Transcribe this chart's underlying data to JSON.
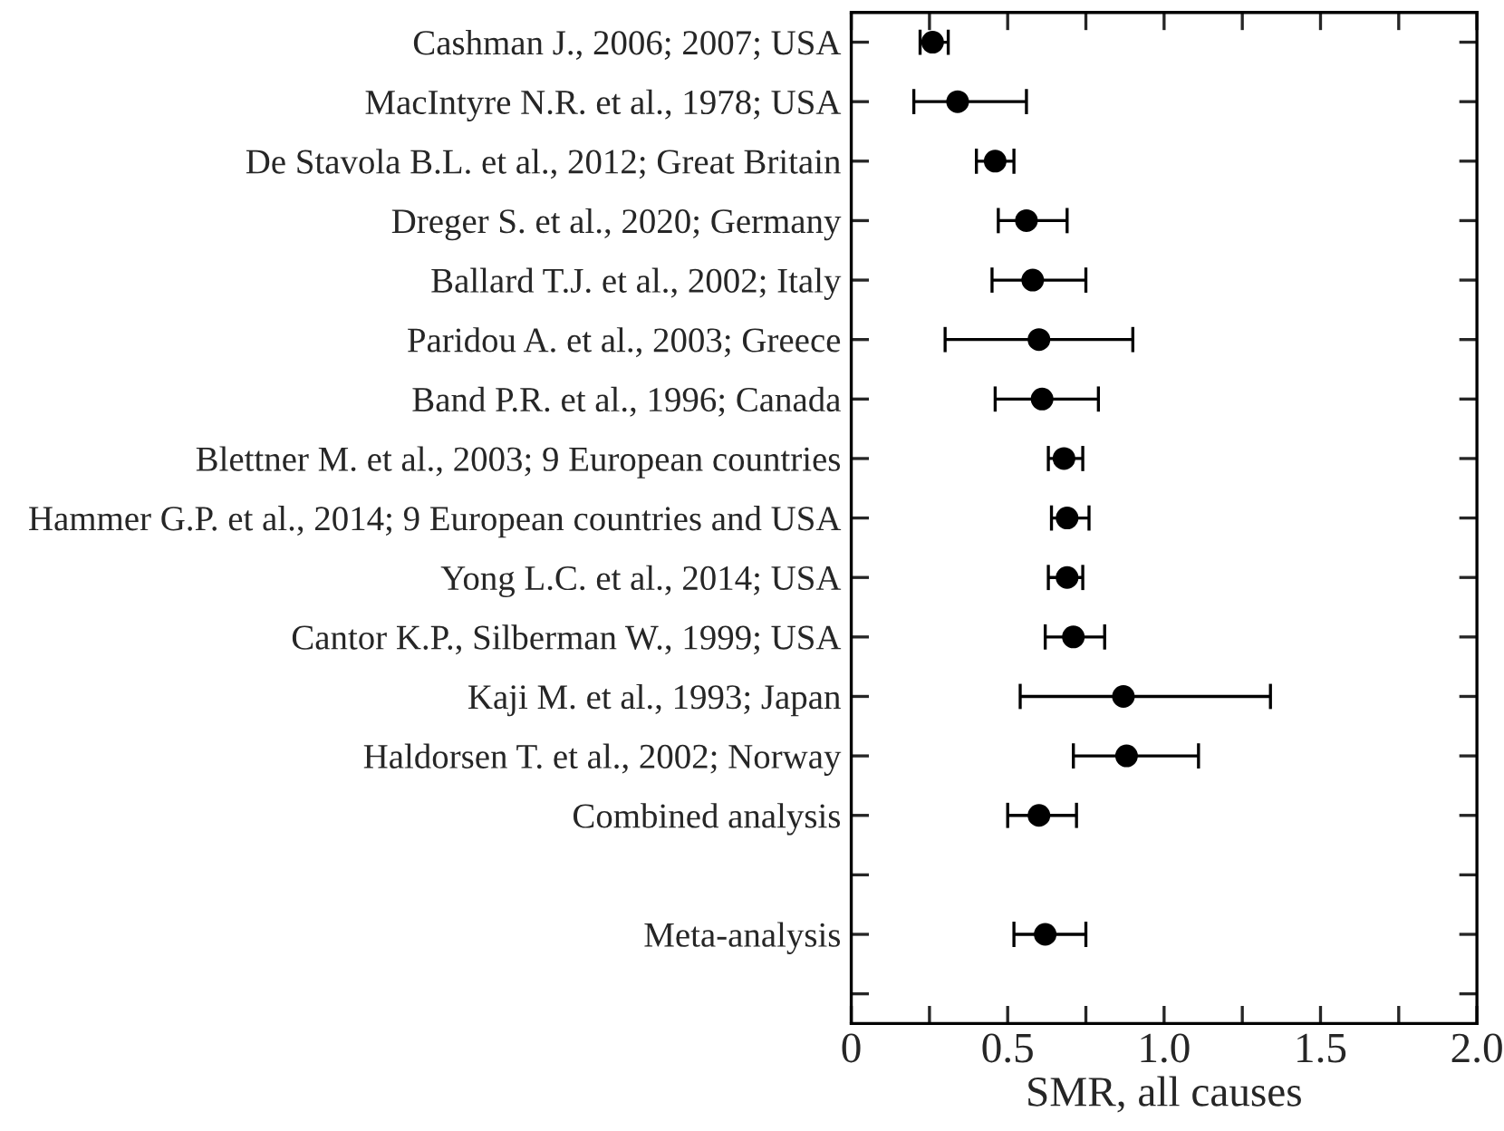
{
  "chart_data": {
    "type": "scatter",
    "orientation": "horizontal",
    "xlabel": "SMR, all causes",
    "categories": [
      "Cashman J., 2006; 2007; USA",
      "MacIntyre N.R. et al., 1978; USA",
      "De Stavola B.L. et al., 2012; Great Britain",
      "Dreger S. et al., 2020; Germany",
      "Ballard T.J. et al., 2002; Italy",
      "Paridou A. et al., 2003; Greece",
      "Band P.R. et al., 1996; Canada",
      "Blettner M. et al., 2003; 9 European countries",
      "Hammer G.P. et al., 2014; 9 European countries and USA",
      "Yong L.C. et al., 2014; USA",
      "Cantor K.P., Silberman W., 1999; USA",
      "Kaji M. et al., 1993; Japan",
      "Haldorsen T. et al., 2002; Norway",
      "Combined analysis",
      null,
      "Meta-analysis",
      null
    ],
    "series": [
      {
        "color": "#000000",
        "values": [
          0.26,
          0.34,
          0.46,
          0.56,
          0.58,
          0.6,
          0.61,
          0.68,
          0.69,
          0.69,
          0.71,
          0.87,
          0.88,
          0.6,
          null,
          0.62,
          null
        ],
        "errors": [
          [
            0.22,
            0.31
          ],
          [
            0.2,
            0.56
          ],
          [
            0.4,
            0.52
          ],
          [
            0.47,
            0.69
          ],
          [
            0.45,
            0.75
          ],
          [
            0.3,
            0.9
          ],
          [
            0.46,
            0.79
          ],
          [
            0.63,
            0.74
          ],
          [
            0.64,
            0.76
          ],
          [
            0.63,
            0.74
          ],
          [
            0.62,
            0.81
          ],
          [
            0.54,
            1.34
          ],
          [
            0.71,
            1.11
          ],
          [
            0.5,
            0.72
          ],
          null,
          [
            0.52,
            0.75
          ],
          null
        ]
      }
    ],
    "xlim": [
      0,
      2
    ],
    "xticks": [
      0,
      {
        "value": 0.25,
        "label": null
      },
      0.5,
      {
        "value": 0.75,
        "label": null
      },
      {
        "value": 1,
        "label": "1.0"
      },
      {
        "value": 1.25,
        "label": null
      },
      1.5,
      {
        "value": 1.75,
        "label": null
      },
      {
        "value": 2,
        "label": "2.0"
      }
    ],
    "marker": "circle",
    "grid": false,
    "legend": false
  }
}
